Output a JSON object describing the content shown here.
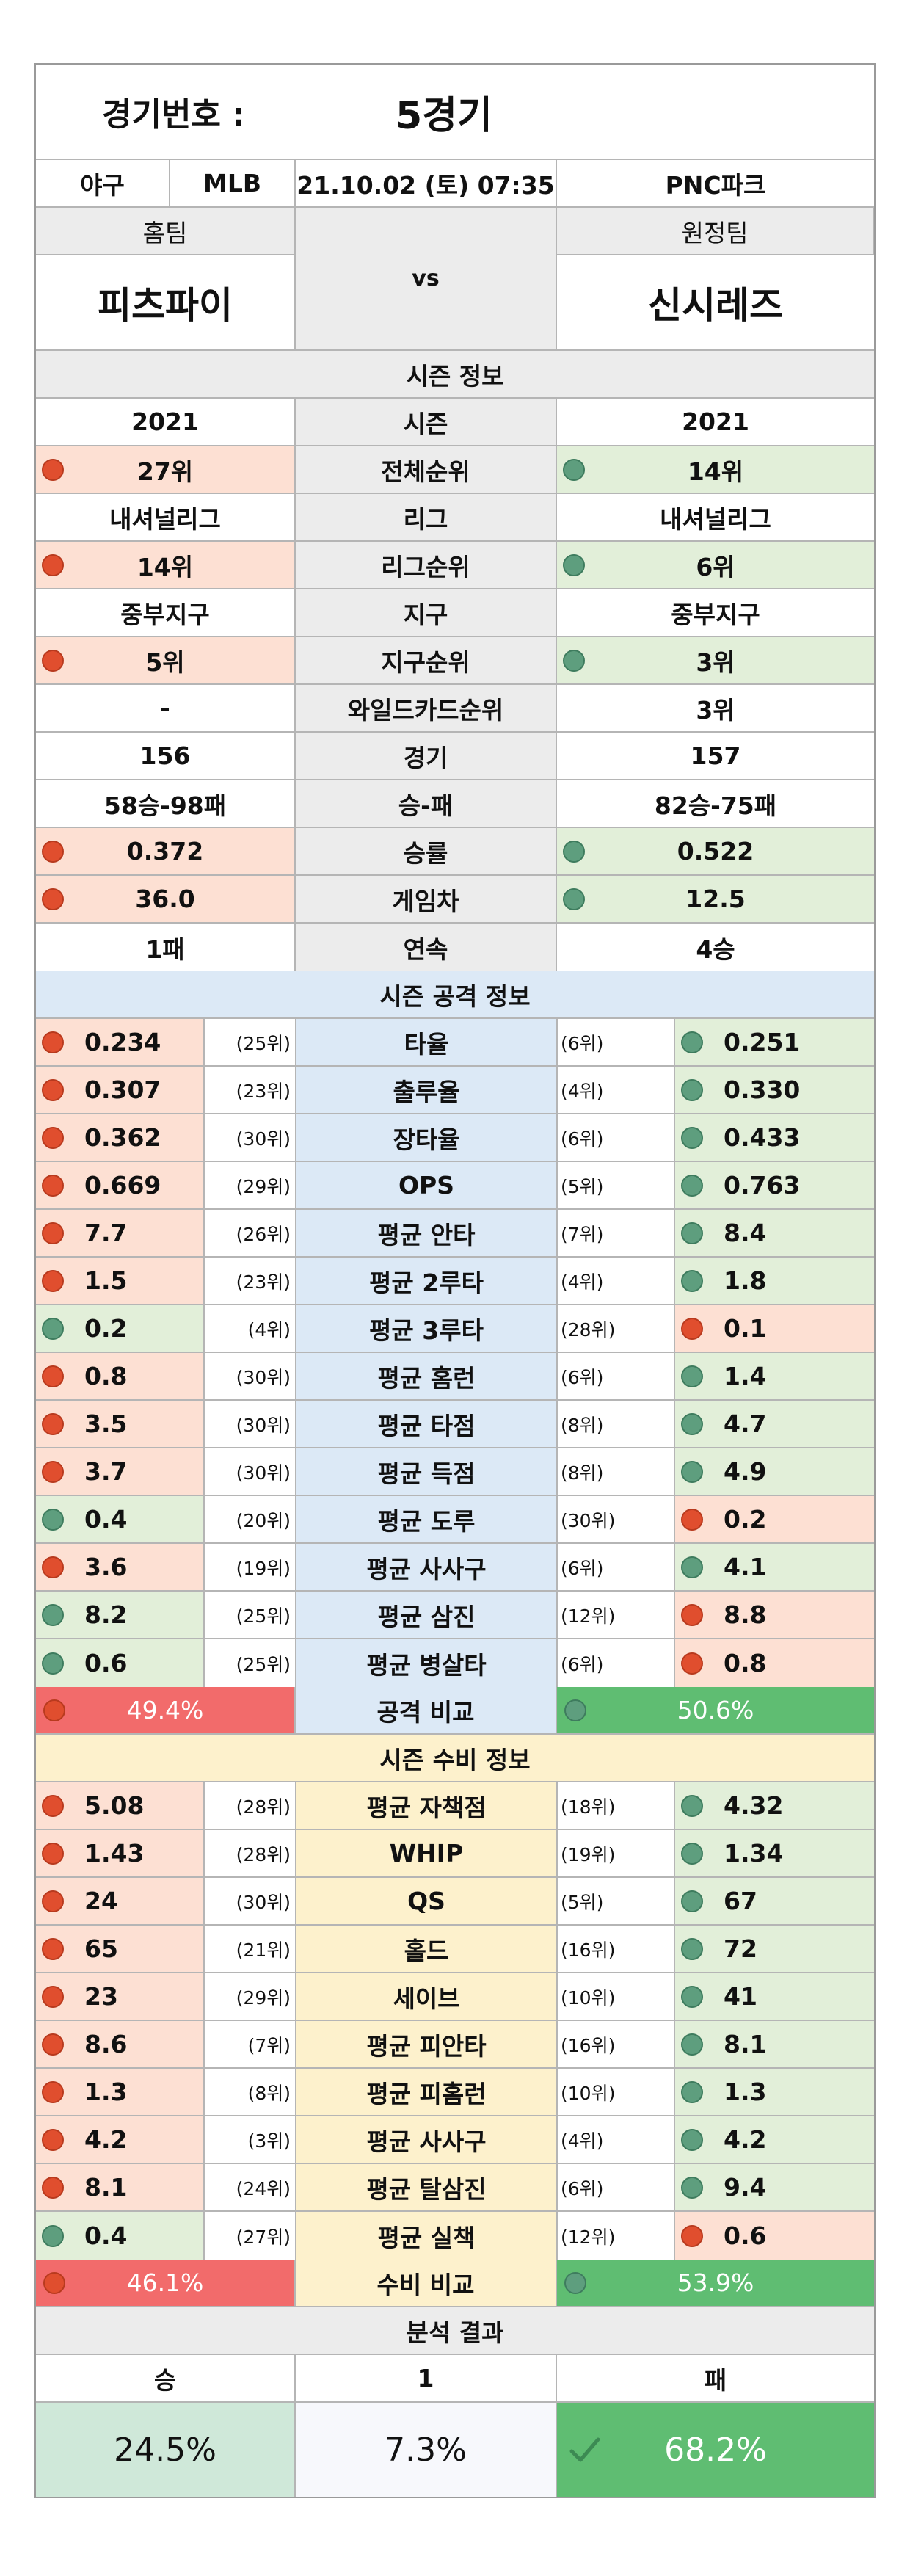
{
  "header": {
    "game_label": "경기번호 :",
    "game_value": "5경기"
  },
  "info": {
    "sport": "야구",
    "league": "MLB",
    "datetime": "21.10.02 (토) 07:35",
    "venue": "PNC파크"
  },
  "teams": {
    "home_label": "홈팀",
    "away_label": "원정팀",
    "vs": "vs",
    "home_name": "피츠파이",
    "away_name": "신시레즈"
  },
  "season": {
    "title": "시즌 정보",
    "rows": [
      {
        "label": "시즌",
        "home": "2021",
        "away": "2021"
      },
      {
        "label": "전체순위",
        "home": "27위",
        "away": "14위",
        "home_status": "bad",
        "away_status": "good"
      },
      {
        "label": "리그",
        "home": "내셔널리그",
        "away": "내셔널리그"
      },
      {
        "label": "리그순위",
        "home": "14위",
        "away": "6위",
        "home_status": "bad",
        "away_status": "good"
      },
      {
        "label": "지구",
        "home": "중부지구",
        "away": "중부지구"
      },
      {
        "label": "지구순위",
        "home": "5위",
        "away": "3위",
        "home_status": "bad",
        "away_status": "good"
      },
      {
        "label": "와일드카드순위",
        "home": "-",
        "away": "3위"
      },
      {
        "label": "경기",
        "home": "156",
        "away": "157"
      },
      {
        "label": "승-패",
        "home": "58승-98패",
        "away": "82승-75패"
      },
      {
        "label": "승률",
        "home": "0.372",
        "away": "0.522",
        "home_status": "bad",
        "away_status": "good"
      },
      {
        "label": "게임차",
        "home": "36.0",
        "away": "12.5",
        "home_status": "bad",
        "away_status": "good"
      },
      {
        "label": "연속",
        "home": "1패",
        "away": "4승"
      }
    ]
  },
  "offense": {
    "title": "시즌 공격 정보",
    "rows": [
      {
        "label": "타율",
        "home": "0.234",
        "home_rank": "(25위)",
        "away_rank": "(6위)",
        "away": "0.251",
        "home_status": "bad",
        "away_status": "good"
      },
      {
        "label": "출루율",
        "home": "0.307",
        "home_rank": "(23위)",
        "away_rank": "(4위)",
        "away": "0.330",
        "home_status": "bad",
        "away_status": "good"
      },
      {
        "label": "장타율",
        "home": "0.362",
        "home_rank": "(30위)",
        "away_rank": "(6위)",
        "away": "0.433",
        "home_status": "bad",
        "away_status": "good"
      },
      {
        "label": "OPS",
        "home": "0.669",
        "home_rank": "(29위)",
        "away_rank": "(5위)",
        "away": "0.763",
        "home_status": "bad",
        "away_status": "good"
      },
      {
        "label": "평균 안타",
        "home": "7.7",
        "home_rank": "(26위)",
        "away_rank": "(7위)",
        "away": "8.4",
        "home_status": "bad",
        "away_status": "good"
      },
      {
        "label": "평균 2루타",
        "home": "1.5",
        "home_rank": "(23위)",
        "away_rank": "(4위)",
        "away": "1.8",
        "home_status": "bad",
        "away_status": "good"
      },
      {
        "label": "평균 3루타",
        "home": "0.2",
        "home_rank": "(4위)",
        "away_rank": "(28위)",
        "away": "0.1",
        "home_status": "good",
        "away_status": "bad"
      },
      {
        "label": "평균 홈런",
        "home": "0.8",
        "home_rank": "(30위)",
        "away_rank": "(6위)",
        "away": "1.4",
        "home_status": "bad",
        "away_status": "good"
      },
      {
        "label": "평균 타점",
        "home": "3.5",
        "home_rank": "(30위)",
        "away_rank": "(8위)",
        "away": "4.7",
        "home_status": "bad",
        "away_status": "good"
      },
      {
        "label": "평균 득점",
        "home": "3.7",
        "home_rank": "(30위)",
        "away_rank": "(8위)",
        "away": "4.9",
        "home_status": "bad",
        "away_status": "good"
      },
      {
        "label": "평균 도루",
        "home": "0.4",
        "home_rank": "(20위)",
        "away_rank": "(30위)",
        "away": "0.2",
        "home_status": "good",
        "away_status": "bad"
      },
      {
        "label": "평균 사사구",
        "home": "3.6",
        "home_rank": "(19위)",
        "away_rank": "(6위)",
        "away": "4.1",
        "home_status": "bad",
        "away_status": "good"
      },
      {
        "label": "평균 삼진",
        "home": "8.2",
        "home_rank": "(25위)",
        "away_rank": "(12위)",
        "away": "8.8",
        "home_status": "good",
        "away_status": "bad"
      },
      {
        "label": "평균 병살타",
        "home": "0.6",
        "home_rank": "(25위)",
        "away_rank": "(6위)",
        "away": "0.8",
        "home_status": "good",
        "away_status": "bad"
      }
    ],
    "compare_label": "공격 비교",
    "home_pct": "49.4%",
    "away_pct": "50.6%"
  },
  "defense": {
    "title": "시즌 수비 정보",
    "rows": [
      {
        "label": "평균 자책점",
        "home": "5.08",
        "home_rank": "(28위)",
        "away_rank": "(18위)",
        "away": "4.32",
        "home_status": "bad",
        "away_status": "good"
      },
      {
        "label": "WHIP",
        "home": "1.43",
        "home_rank": "(28위)",
        "away_rank": "(19위)",
        "away": "1.34",
        "home_status": "bad",
        "away_status": "good"
      },
      {
        "label": "QS",
        "home": "24",
        "home_rank": "(30위)",
        "away_rank": "(5위)",
        "away": "67",
        "home_status": "bad",
        "away_status": "good"
      },
      {
        "label": "홀드",
        "home": "65",
        "home_rank": "(21위)",
        "away_rank": "(16위)",
        "away": "72",
        "home_status": "bad",
        "away_status": "good"
      },
      {
        "label": "세이브",
        "home": "23",
        "home_rank": "(29위)",
        "away_rank": "(10위)",
        "away": "41",
        "home_status": "bad",
        "away_status": "good"
      },
      {
        "label": "평균 피안타",
        "home": "8.6",
        "home_rank": "(7위)",
        "away_rank": "(16위)",
        "away": "8.1",
        "home_status": "bad",
        "away_status": "good"
      },
      {
        "label": "평균 피홈런",
        "home": "1.3",
        "home_rank": "(8위)",
        "away_rank": "(10위)",
        "away": "1.3",
        "home_status": "bad",
        "away_status": "good"
      },
      {
        "label": "평균 사사구",
        "home": "4.2",
        "home_rank": "(3위)",
        "away_rank": "(4위)",
        "away": "4.2",
        "home_status": "bad",
        "away_status": "good"
      },
      {
        "label": "평균 탈삼진",
        "home": "8.1",
        "home_rank": "(24위)",
        "away_rank": "(6위)",
        "away": "9.4",
        "home_status": "bad",
        "away_status": "good"
      },
      {
        "label": "평균 실책",
        "home": "0.4",
        "home_rank": "(27위)",
        "away_rank": "(12위)",
        "away": "0.6",
        "home_status": "good",
        "away_status": "bad"
      }
    ],
    "compare_label": "수비 비교",
    "home_pct": "46.1%",
    "away_pct": "53.9%"
  },
  "result": {
    "title": "분석 결과",
    "win_label": "승",
    "draw_label": "1",
    "lose_label": "패",
    "win_pct": "24.5%",
    "draw_pct": "7.3%",
    "lose_pct": "68.2%"
  },
  "colors": {
    "bad": "#fde0d3",
    "good": "#e2efd9",
    "attack_band": "#dce9f6",
    "defense_band": "#fdf1cc",
    "red_dot": "#e04e2e",
    "green_dot": "#5e9e7e"
  }
}
